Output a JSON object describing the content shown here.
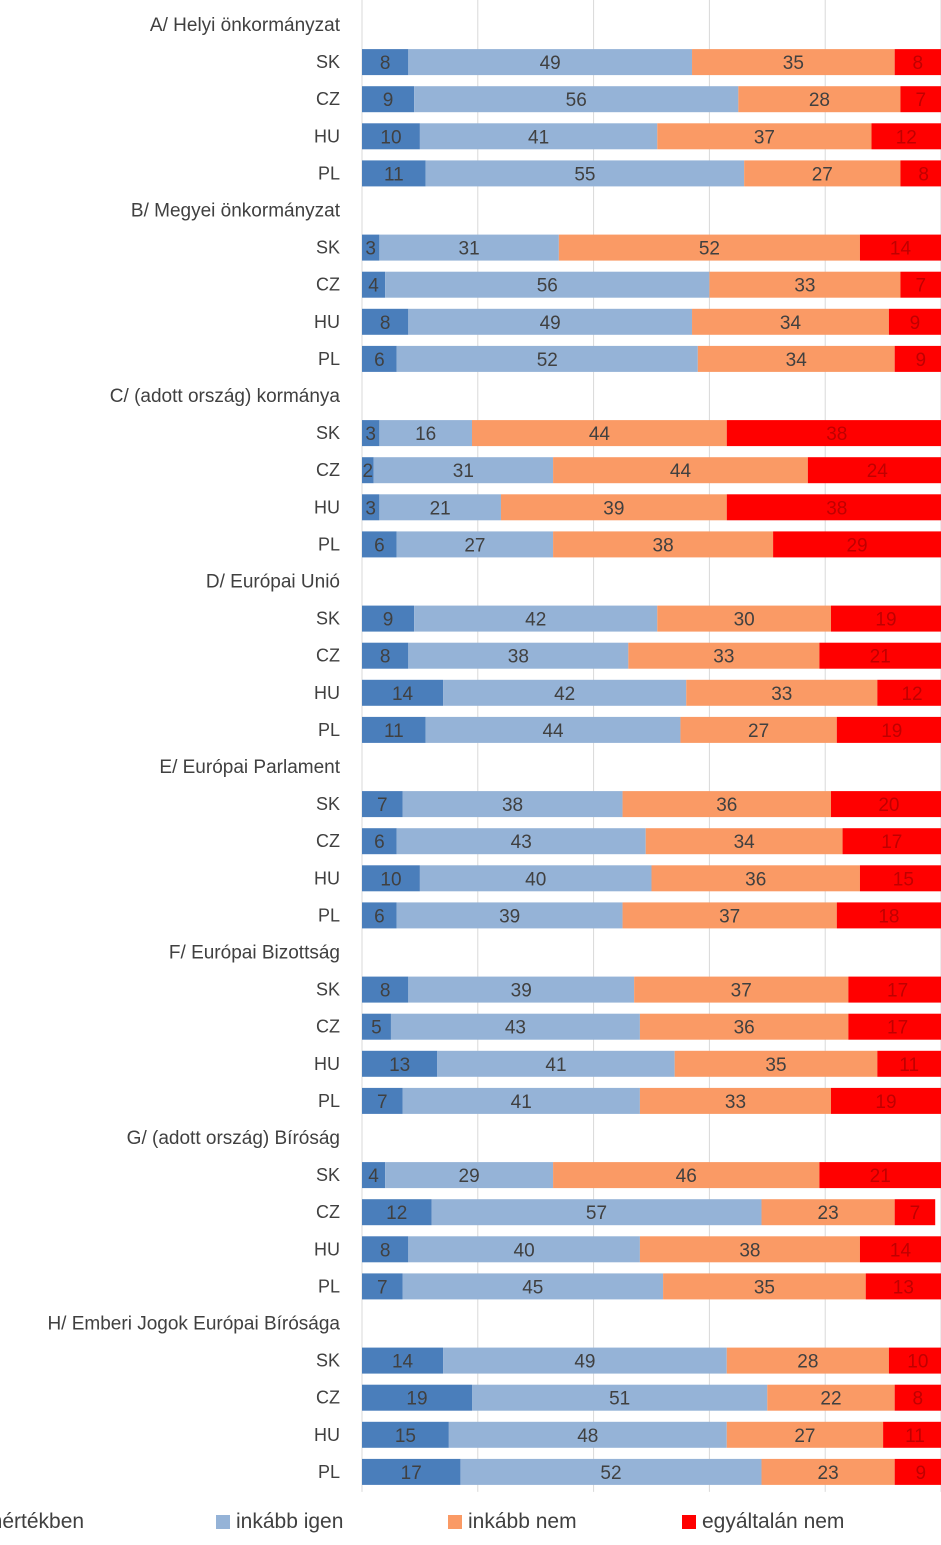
{
  "chart_data": {
    "type": "bar",
    "orientation": "horizontal",
    "stacking": "percent",
    "grid": "vertical",
    "legend_position": "bottom",
    "xlim": [
      0,
      100
    ],
    "series": [
      {
        "name": "teljes mértékben",
        "color": "#4a7ebb"
      },
      {
        "name": "inkább igen",
        "color": "#95b3d7"
      },
      {
        "name": "inkább nem",
        "color": "#fa9a65"
      },
      {
        "name": "egyáltalán nem",
        "color": "#ff0000"
      }
    ],
    "groups": [
      {
        "title": "A/ Helyi önkormányzat",
        "rows": [
          {
            "label": "SK",
            "values": [
              8,
              49,
              35,
              8
            ]
          },
          {
            "label": "CZ",
            "values": [
              9,
              56,
              28,
              7
            ]
          },
          {
            "label": "HU",
            "values": [
              10,
              41,
              37,
              12
            ]
          },
          {
            "label": "PL",
            "values": [
              11,
              55,
              27,
              8
            ]
          }
        ]
      },
      {
        "title": "B/ Megyei önkormányzat",
        "rows": [
          {
            "label": "SK",
            "values": [
              3,
              31,
              52,
              14
            ]
          },
          {
            "label": "CZ",
            "values": [
              4,
              56,
              33,
              7
            ]
          },
          {
            "label": "HU",
            "values": [
              8,
              49,
              34,
              9
            ]
          },
          {
            "label": "PL",
            "values": [
              6,
              52,
              34,
              9
            ]
          }
        ]
      },
      {
        "title": "C/ (adott ország) kormánya",
        "rows": [
          {
            "label": "SK",
            "values": [
              3,
              16,
              44,
              38
            ]
          },
          {
            "label": "CZ",
            "values": [
              2,
              31,
              44,
              24
            ]
          },
          {
            "label": "HU",
            "values": [
              3,
              21,
              39,
              38
            ]
          },
          {
            "label": "PL",
            "values": [
              6,
              27,
              38,
              29
            ]
          }
        ]
      },
      {
        "title": "D/ Európai Unió",
        "rows": [
          {
            "label": "SK",
            "values": [
              9,
              42,
              30,
              19
            ]
          },
          {
            "label": "CZ",
            "values": [
              8,
              38,
              33,
              21
            ]
          },
          {
            "label": "HU",
            "values": [
              14,
              42,
              33,
              12
            ]
          },
          {
            "label": "PL",
            "values": [
              11,
              44,
              27,
              19
            ]
          }
        ]
      },
      {
        "title": "E/ Európai Parlament",
        "rows": [
          {
            "label": "SK",
            "values": [
              7,
              38,
              36,
              20
            ]
          },
          {
            "label": "CZ",
            "values": [
              6,
              43,
              34,
              17
            ]
          },
          {
            "label": "HU",
            "values": [
              10,
              40,
              36,
              15
            ]
          },
          {
            "label": "PL",
            "values": [
              6,
              39,
              37,
              18
            ]
          }
        ]
      },
      {
        "title": "F/ Európai Bizottság",
        "rows": [
          {
            "label": "SK",
            "values": [
              8,
              39,
              37,
              17
            ]
          },
          {
            "label": "CZ",
            "values": [
              5,
              43,
              36,
              17
            ]
          },
          {
            "label": "HU",
            "values": [
              13,
              41,
              35,
              11
            ]
          },
          {
            "label": "PL",
            "values": [
              7,
              41,
              33,
              19
            ]
          }
        ]
      },
      {
        "title": "G/ (adott ország) Bíróság",
        "rows": [
          {
            "label": "SK",
            "values": [
              4,
              29,
              46,
              21
            ]
          },
          {
            "label": "CZ",
            "values": [
              12,
              57,
              23,
              7
            ]
          },
          {
            "label": "HU",
            "values": [
              8,
              40,
              38,
              14
            ]
          },
          {
            "label": "PL",
            "values": [
              7,
              45,
              35,
              13
            ]
          }
        ]
      },
      {
        "title": "H/ Emberi Jogok Európai Bírósága",
        "rows": [
          {
            "label": "SK",
            "values": [
              14,
              49,
              28,
              10
            ]
          },
          {
            "label": "CZ",
            "values": [
              19,
              51,
              22,
              8
            ]
          },
          {
            "label": "HU",
            "values": [
              15,
              48,
              27,
              11
            ]
          },
          {
            "label": "PL",
            "values": [
              17,
              52,
              23,
              9
            ]
          }
        ]
      }
    ]
  }
}
